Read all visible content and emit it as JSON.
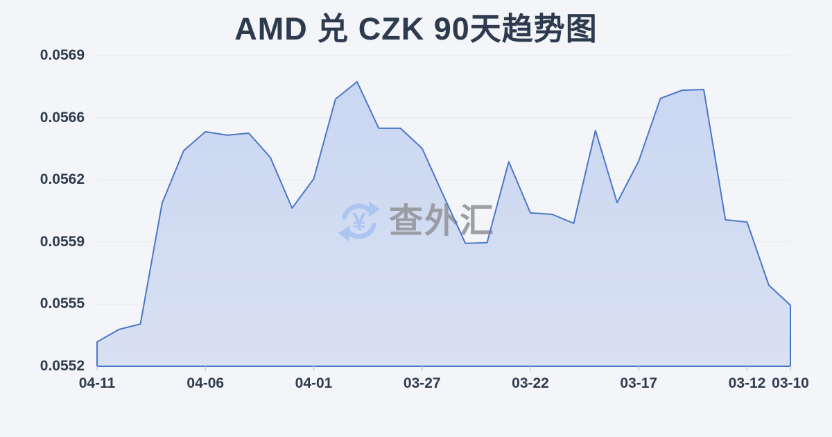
{
  "title": "AMD 兑 CZK 90天趋势图",
  "watermark": {
    "text": "查外汇",
    "symbol": "¥",
    "icon": "currency-exchange-icon"
  },
  "colors": {
    "background": "#f3f5f8",
    "line": "#4b77c9",
    "fill_top": "#cad7f2",
    "fill_bottom": "#d8e0f2",
    "grid": "#e7e9ed",
    "tick": "#c9cdd5",
    "text_dark": "#2e3a4e",
    "watermark_text": "#97989f",
    "watermark_icon": "#a9c4f3"
  },
  "chart_data": {
    "type": "area",
    "title": "AMD 兑 CZK 90天趋势图",
    "x_axis_note": "dates run newest (04-11) on the left to oldest (03-10) on the right",
    "x": [
      "04-11",
      "04-10",
      "04-09",
      "04-08",
      "04-07",
      "04-06",
      "04-05",
      "04-04",
      "04-03",
      "04-02",
      "04-01",
      "03-31",
      "03-30",
      "03-29",
      "03-28",
      "03-27",
      "03-26",
      "03-25",
      "03-24",
      "03-23",
      "03-22",
      "03-21",
      "03-20",
      "03-19",
      "03-18",
      "03-17",
      "03-16",
      "03-15",
      "03-14",
      "03-13",
      "03-12",
      "03-11",
      "03-10"
    ],
    "values": [
      0.055333,
      0.055401,
      0.055431,
      0.056092,
      0.05638,
      0.056483,
      0.056464,
      0.056475,
      0.056342,
      0.056065,
      0.056225,
      0.056661,
      0.056756,
      0.056502,
      0.056502,
      0.056392,
      0.05613,
      0.055872,
      0.055876,
      0.056319,
      0.056039,
      0.056031,
      0.055982,
      0.05649,
      0.056095,
      0.056323,
      0.056665,
      0.05671,
      0.056714,
      0.056001,
      0.055989,
      0.055644,
      0.055534
    ],
    "x_tick_labels": [
      "04-11",
      "04-06",
      "04-01",
      "03-27",
      "03-22",
      "03-17",
      "03-12",
      "03-10"
    ],
    "x_tick_indices": [
      0,
      5,
      10,
      15,
      20,
      25,
      30,
      32
    ],
    "y_tick_labels": [
      "0.0569",
      "0.0566",
      "0.0562",
      "0.0559",
      "0.0555",
      "0.0552"
    ],
    "ylim": [
      0.0552,
      0.0569
    ],
    "grid": "horizontal",
    "legend": "none"
  }
}
